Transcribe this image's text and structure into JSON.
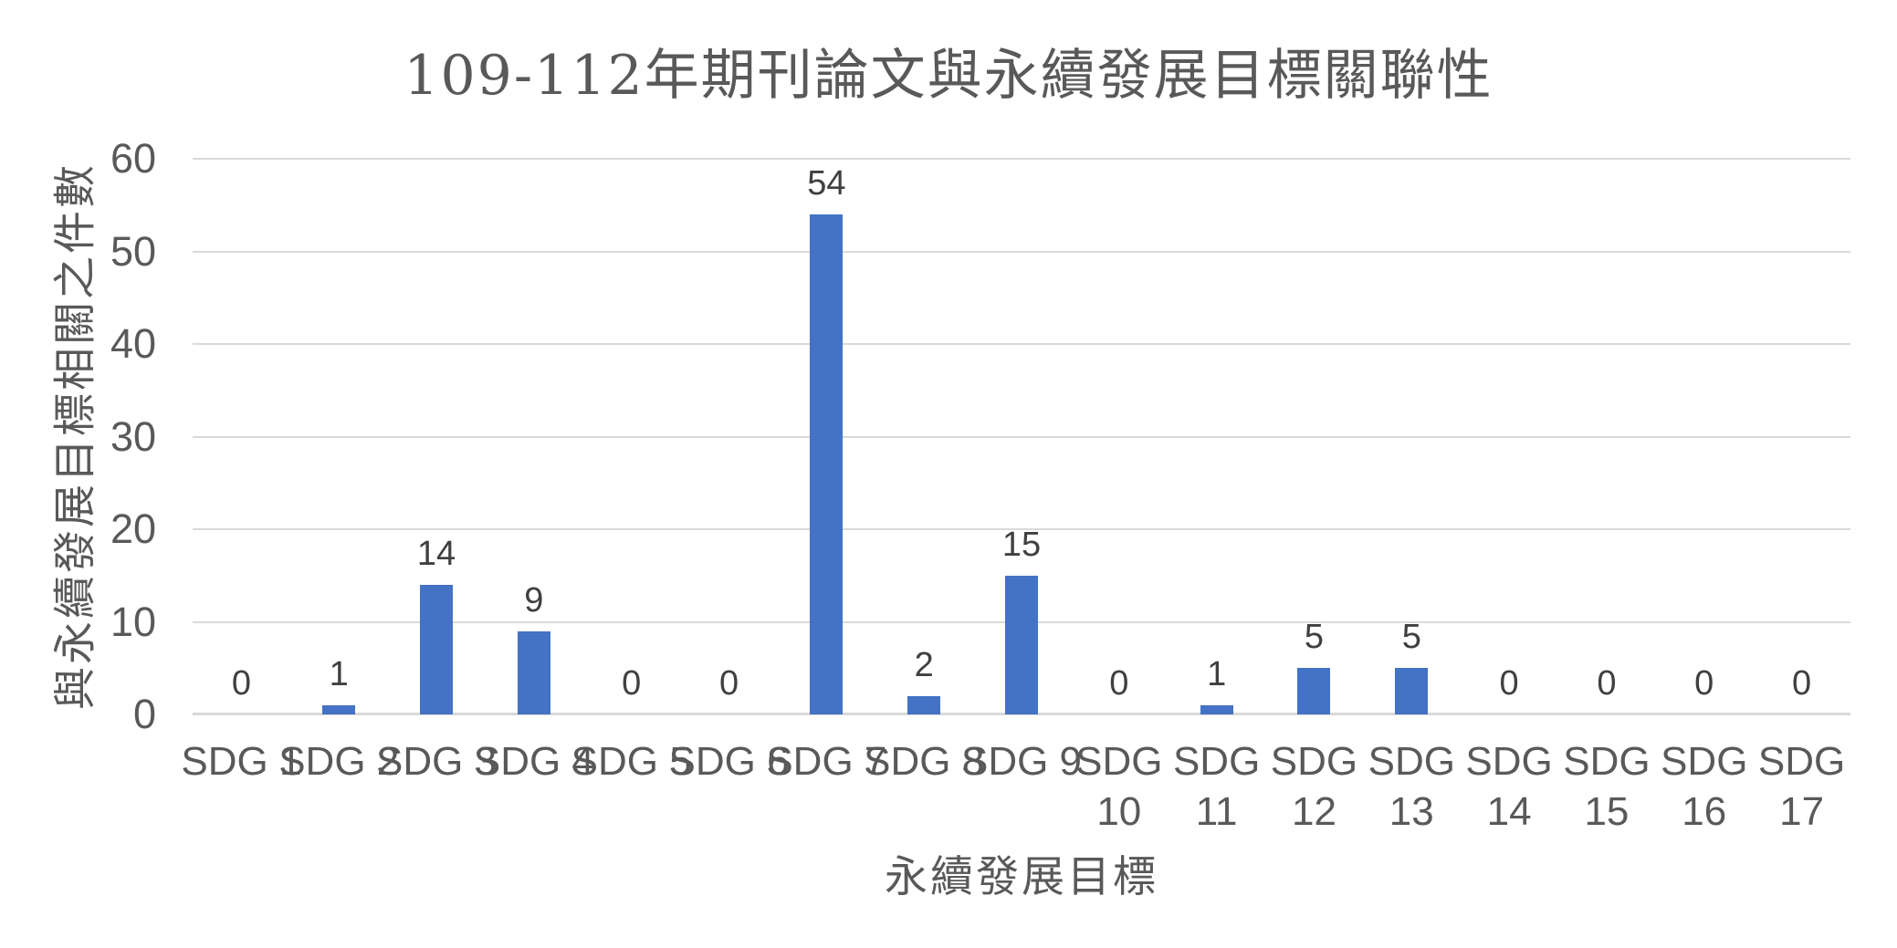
{
  "chart_data": {
    "type": "bar",
    "title": "109-112年期刊論文與永續發展目標關聯性",
    "xlabel": "永續發展目標",
    "ylabel": "與永續發展目標相關之件數",
    "categories": [
      "SDG 1",
      "SDG 2",
      "SDG 3",
      "SDG 4",
      "SDG 5",
      "SDG 6",
      "SDG 7",
      "SDG 8",
      "SDG 9",
      "SDG 10",
      "SDG 11",
      "SDG 12",
      "SDG 13",
      "SDG 14",
      "SDG 15",
      "SDG 16",
      "SDG 17"
    ],
    "values": [
      0,
      1,
      14,
      9,
      0,
      0,
      54,
      2,
      15,
      0,
      1,
      5,
      5,
      0,
      0,
      0,
      0
    ],
    "data_labels": [
      0,
      1,
      14,
      9,
      0,
      0,
      54,
      2,
      15,
      0,
      1,
      5,
      5,
      0,
      0,
      0,
      0
    ],
    "ylim": [
      0,
      60
    ],
    "yticks": [
      0,
      10,
      20,
      30,
      40,
      50,
      60
    ],
    "grid": true,
    "legend": false,
    "legend_position": "none",
    "colors": {
      "bar": "#4472C4",
      "gridline": "#D9D9D9",
      "axis_text": "#595959",
      "title_text": "#595959",
      "data_label_text": "#404040",
      "background": "#FFFFFF"
    }
  }
}
